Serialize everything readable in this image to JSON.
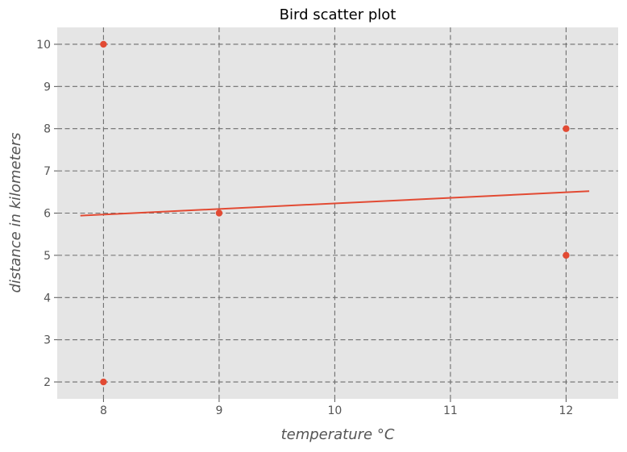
{
  "chart_data": {
    "type": "scatter",
    "title": "Bird scatter plot",
    "xlabel": "temperature °C",
    "ylabel": "distance in kilometers",
    "xlim": [
      7.6,
      12.45
    ],
    "ylim": [
      1.6,
      10.4
    ],
    "x_ticks": [
      8,
      9,
      10,
      11,
      12
    ],
    "y_ticks": [
      2,
      3,
      4,
      5,
      6,
      7,
      8,
      9,
      10
    ],
    "grid": true,
    "points": [
      {
        "x": 8,
        "y": 10
      },
      {
        "x": 8,
        "y": 2
      },
      {
        "x": 9,
        "y": 6
      },
      {
        "x": 12,
        "y": 8
      },
      {
        "x": 12,
        "y": 5
      }
    ],
    "fit_line": {
      "x": [
        7.8,
        12.2
      ],
      "y": [
        5.94,
        6.52
      ]
    },
    "colors": {
      "marker": "#e24a33",
      "line": "#e24a33",
      "plot_background": "#e5e5e5",
      "grid": "#6e6e6e"
    }
  }
}
